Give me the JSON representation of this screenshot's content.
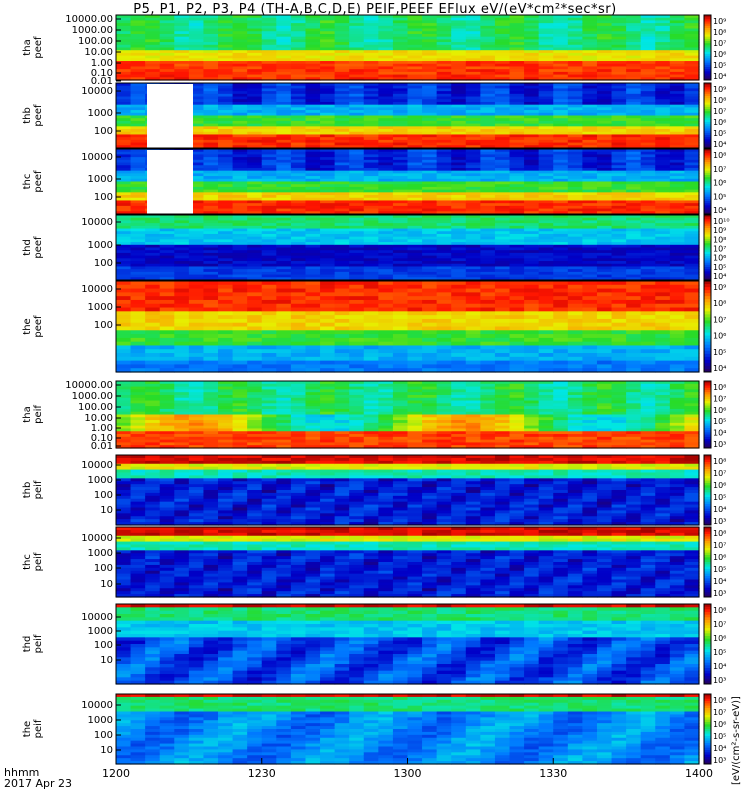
{
  "title": "P5, P1, P2, P3, P4 (TH-A,B,C,D,E) PEIF,PEEF EFlux eV/(eV*cm²*sec*sr)",
  "footer": {
    "time_label": "hhmm",
    "date_label": "2017 Apr 23"
  },
  "x_ticks": [
    "1200",
    "1230",
    "1300",
    "1330",
    "1400"
  ],
  "unit_label": "[eV/(cm²-s-sr-eV)]",
  "colors": {
    "low": "#3a0a6e",
    "mid": "#00d000",
    "high": "#ff0000",
    "fill": "#ffffff"
  },
  "chart_data": [
    {
      "type": "heatmap",
      "panel": "tha-peef",
      "ylabel": [
        "tha",
        "peef"
      ],
      "yticks": [
        "10000.00",
        "1000.00",
        "100.00",
        "10.00",
        "1.00",
        "0.10",
        "0.01"
      ],
      "cbticks": [
        "10⁹",
        "10⁸",
        "10⁷",
        "10⁶",
        "10⁵",
        "10⁴"
      ],
      "x_range": [
        "1200",
        "1400"
      ]
    },
    {
      "type": "heatmap",
      "panel": "thb-peef",
      "ylabel": [
        "thb",
        "peef"
      ],
      "yticks": [
        "10000",
        "1000",
        "100"
      ],
      "cbticks": [
        "10⁹",
        "10⁸",
        "10⁷",
        "10⁶",
        "10⁵",
        "10⁴"
      ],
      "x_range": [
        "1200",
        "1400"
      ]
    },
    {
      "type": "heatmap",
      "panel": "thc-peef",
      "ylabel": [
        "thc",
        "peef"
      ],
      "yticks": [
        "10000",
        "1000",
        "100"
      ],
      "cbticks": [
        "10⁸",
        "10⁷",
        "10⁶",
        "10⁵",
        "10⁴"
      ],
      "x_range": [
        "1200",
        "1400"
      ]
    },
    {
      "type": "heatmap",
      "panel": "thd-peef",
      "ylabel": [
        "thd",
        "peef"
      ],
      "yticks": [
        "10000",
        "1000",
        "100"
      ],
      "cbticks": [
        "10¹⁰",
        "10⁹",
        "10⁸",
        "10⁷",
        "10⁶",
        "10⁵",
        "10⁴"
      ],
      "x_range": [
        "1200",
        "1400"
      ]
    },
    {
      "type": "heatmap",
      "panel": "the-peef",
      "ylabel": [
        "the",
        "peef"
      ],
      "yticks": [
        "10000",
        "1000",
        "100"
      ],
      "cbticks": [
        "10⁹",
        "10⁸",
        "10⁷",
        "10⁶",
        "10⁵",
        "10⁴"
      ],
      "x_range": [
        "1200",
        "1400"
      ]
    },
    {
      "type": "heatmap",
      "panel": "tha-peif",
      "ylabel": [
        "tha",
        "peif"
      ],
      "yticks": [
        "10000.00",
        "1000.00",
        "100.00",
        "10.00",
        "1.00",
        "0.10",
        "0.01"
      ],
      "cbticks": [
        "10⁸",
        "10⁷",
        "10⁶",
        "10⁵",
        "10⁴",
        "10³"
      ],
      "x_range": [
        "1200",
        "1400"
      ]
    },
    {
      "type": "heatmap",
      "panel": "thb-peif",
      "ylabel": [
        "thb",
        "peif"
      ],
      "yticks": [
        "10000",
        "1000",
        "100",
        "10"
      ],
      "cbticks": [
        "10⁸",
        "10⁷",
        "10⁶",
        "10⁵",
        "10⁴",
        "10³"
      ],
      "x_range": [
        "1200",
        "1400"
      ]
    },
    {
      "type": "heatmap",
      "panel": "thc-peif",
      "ylabel": [
        "thc",
        "peif"
      ],
      "yticks": [
        "10000",
        "1000",
        "100",
        "10"
      ],
      "cbticks": [
        "10⁸",
        "10⁷",
        "10⁶",
        "10⁵",
        "10⁴",
        "10³"
      ],
      "x_range": [
        "1200",
        "1400"
      ]
    },
    {
      "type": "heatmap",
      "panel": "thd-peif",
      "ylabel": [
        "thd",
        "peif"
      ],
      "yticks": [
        "10000",
        "1000",
        "100",
        "10"
      ],
      "cbticks": [
        "10⁸",
        "10⁷",
        "10⁶",
        "10⁵",
        "10⁴",
        "10³"
      ],
      "x_range": [
        "1200",
        "1400"
      ]
    },
    {
      "type": "heatmap",
      "panel": "the-peif",
      "ylabel": [
        "the",
        "peif"
      ],
      "yticks": [
        "10000",
        "1000",
        "100",
        "10"
      ],
      "cbticks": [
        "10⁸",
        "10⁷",
        "10⁶",
        "10⁵",
        "10⁴",
        "10³"
      ],
      "x_range": [
        "1200",
        "1400"
      ]
    }
  ]
}
